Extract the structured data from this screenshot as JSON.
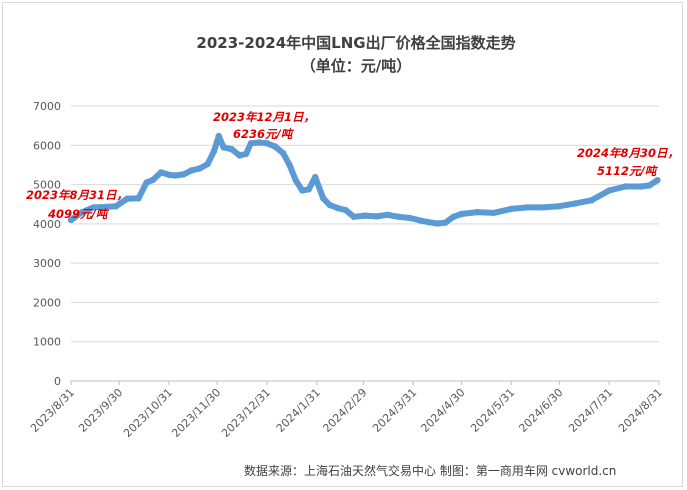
{
  "chart_data": {
    "type": "line",
    "title": "2023-2024年中国LNG出厂价格全国指数走势",
    "subtitle": "（单位：元/吨）",
    "ylim": [
      0,
      7000
    ],
    "yticks": [
      "0",
      "1000",
      "2000",
      "3000",
      "4000",
      "5000",
      "6000",
      "7000"
    ],
    "x_ticks": [
      "2023/8/31",
      "2023/9/30",
      "2023/10/31",
      "2023/11/30",
      "2023/12/31",
      "2024/1/31",
      "2024/2/29",
      "2024/3/31",
      "2024/4/30",
      "2024/5/31",
      "2024/6/30",
      "2024/7/31",
      "2024/8/31"
    ],
    "grid": true,
    "legend": "none",
    "series_color": "#5b9bd5",
    "annotation_color": "#e00000",
    "series": [
      {
        "x": [
          "2023-08-31",
          "2023-09-07",
          "2023-09-14",
          "2023-09-21",
          "2023-09-28",
          "2023-10-05",
          "2023-10-12",
          "2023-10-17",
          "2023-10-21",
          "2023-10-26",
          "2023-10-31",
          "2023-11-04",
          "2023-11-09",
          "2023-11-14",
          "2023-11-19",
          "2023-11-24",
          "2023-11-28",
          "2023-12-01",
          "2023-12-04",
          "2023-12-09",
          "2023-12-14",
          "2023-12-18",
          "2023-12-21",
          "2023-12-26",
          "2023-12-31",
          "2024-01-05",
          "2024-01-10",
          "2024-01-14",
          "2024-01-18",
          "2024-01-22",
          "2024-01-26",
          "2024-01-30",
          "2024-02-04",
          "2024-02-08",
          "2024-02-13",
          "2024-02-18",
          "2024-02-23",
          "2024-03-01",
          "2024-03-08",
          "2024-03-15",
          "2024-03-22",
          "2024-03-29",
          "2024-04-05",
          "2024-04-10",
          "2024-04-15",
          "2024-04-20",
          "2024-04-25",
          "2024-04-30",
          "2024-05-10",
          "2024-05-20",
          "2024-05-31",
          "2024-06-10",
          "2024-06-20",
          "2024-06-30",
          "2024-07-10",
          "2024-07-20",
          "2024-07-31",
          "2024-08-10",
          "2024-08-20",
          "2024-08-25",
          "2024-08-30"
        ],
        "values": [
          4099,
          4300,
          4420,
          4430,
          4450,
          4640,
          4650,
          5050,
          5120,
          5310,
          5250,
          5230,
          5260,
          5360,
          5410,
          5520,
          5850,
          6236,
          5950,
          5900,
          5740,
          5780,
          6050,
          6070,
          6050,
          5970,
          5800,
          5500,
          5100,
          4850,
          4880,
          5190,
          4650,
          4480,
          4400,
          4350,
          4180,
          4210,
          4190,
          4230,
          4180,
          4150,
          4080,
          4040,
          4010,
          4030,
          4180,
          4250,
          4300,
          4280,
          4380,
          4420,
          4420,
          4450,
          4520,
          4600,
          4850,
          4950,
          4950,
          4980,
          5112
        ]
      }
    ],
    "annotations": [
      {
        "date": "2023年8月31日，",
        "value": "4099元/吨"
      },
      {
        "date": "2023年12月1日，",
        "value": "6236元/吨"
      },
      {
        "date": "2024年8月30日，",
        "value": "5112元/吨"
      }
    ],
    "source": "数据来源：上海石油天然气交易中心 制图：第一商用车网 cvworld.cn"
  }
}
